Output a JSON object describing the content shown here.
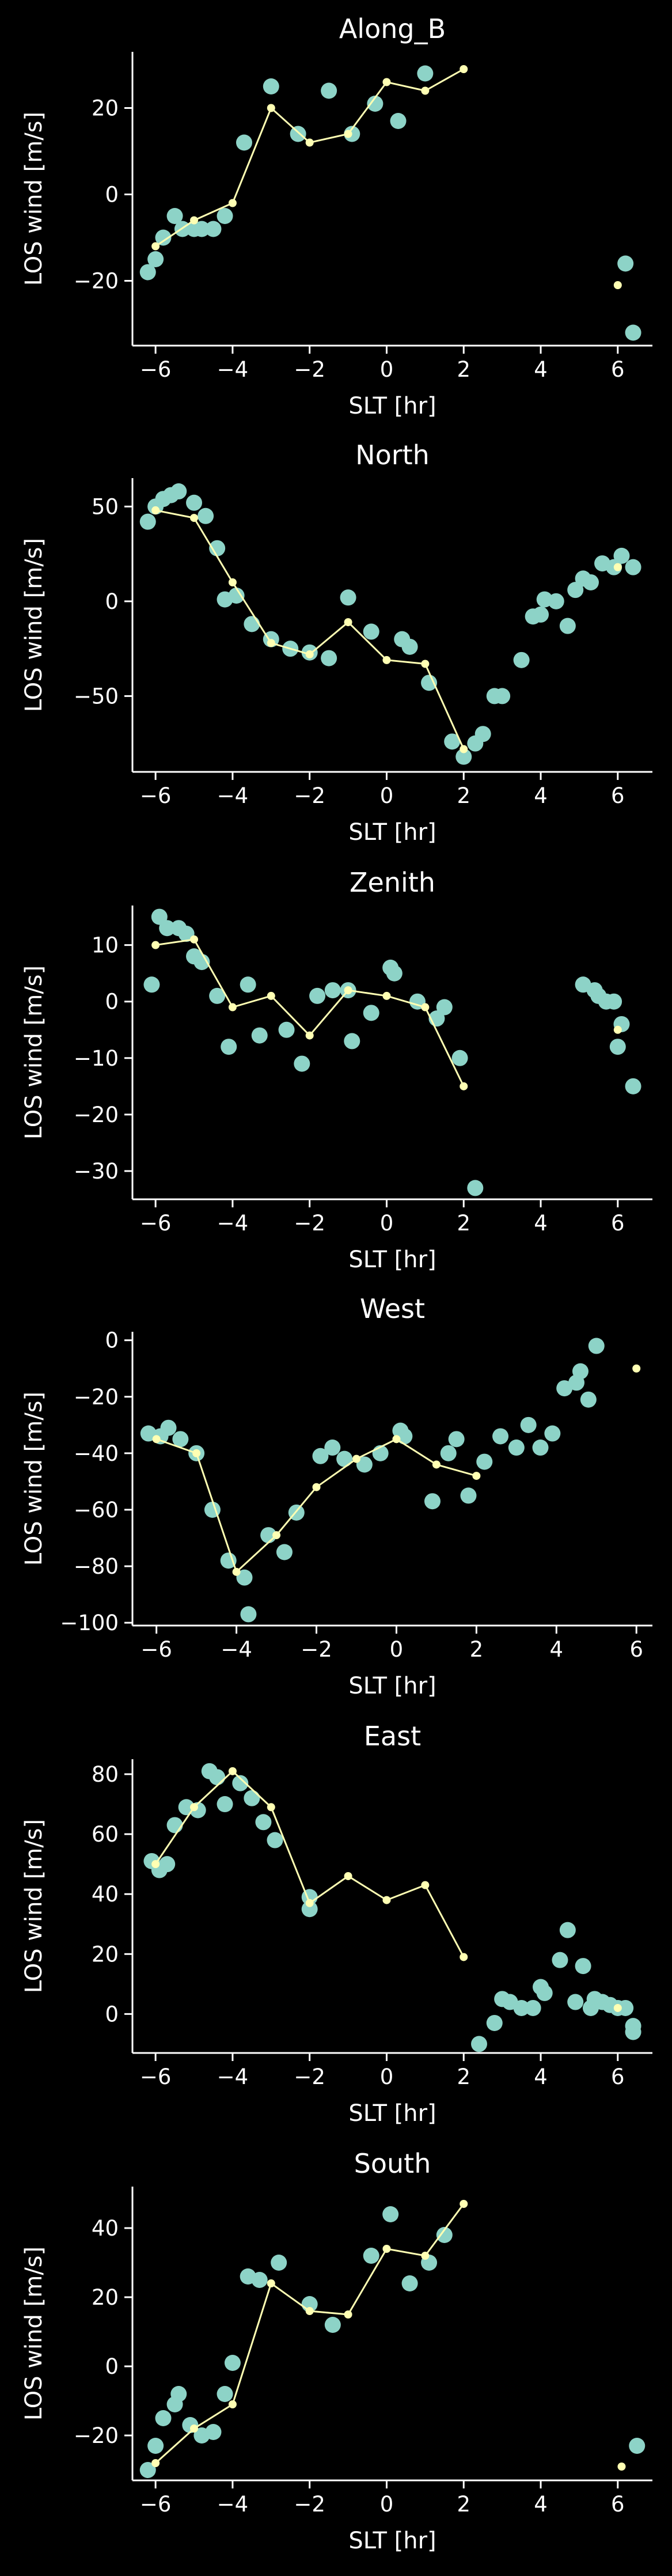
{
  "figure": {
    "background": "#000000",
    "axis_color": "#ffffff",
    "scatter_color": "#8dd3c7",
    "line_color": "#ffffb3"
  },
  "chart_data": [
    {
      "type": "scatter",
      "title": "Along_B",
      "xlabel": "SLT [hr]",
      "ylabel": "LOS wind [m/s]",
      "xlim": [
        -6.6,
        6.9
      ],
      "ylim": [
        -35,
        33
      ],
      "xticks": [
        -6,
        -4,
        -2,
        0,
        2,
        4,
        6
      ],
      "yticks": [
        -20,
        0,
        20
      ],
      "scatter": {
        "x": [
          -6.2,
          -6.0,
          -5.8,
          -5.5,
          -5.3,
          -5.0,
          -4.8,
          -4.5,
          -4.2,
          -3.7,
          -3.0,
          -2.3,
          -1.5,
          -0.9,
          -0.3,
          0.3,
          1.0,
          6.2,
          6.4
        ],
        "y": [
          -18,
          -15,
          -10,
          -5,
          -8,
          -8,
          -8,
          -8,
          -5,
          12,
          25,
          14,
          24,
          14,
          21,
          17,
          28,
          -16,
          -32
        ]
      },
      "line": {
        "x": [
          -6.0,
          -5.0,
          -4.0,
          -3.0,
          -2.0,
          -1.0,
          0.0,
          1.0,
          2.0
        ],
        "y": [
          -12,
          -6,
          -2,
          20,
          12,
          14,
          26,
          24,
          29
        ],
        "extra_point": [
          6.0,
          -21
        ]
      }
    },
    {
      "type": "scatter",
      "title": "North",
      "xlabel": "SLT [hr]",
      "ylabel": "LOS wind [m/s]",
      "xlim": [
        -6.6,
        6.9
      ],
      "ylim": [
        -90,
        65
      ],
      "xticks": [
        -6,
        -4,
        -2,
        0,
        2,
        4,
        6
      ],
      "yticks": [
        -50,
        0,
        50
      ],
      "scatter": {
        "x": [
          -6.2,
          -6.0,
          -5.8,
          -5.6,
          -5.4,
          -5.0,
          -4.7,
          -4.4,
          -4.2,
          -3.9,
          -3.5,
          -3.0,
          -2.5,
          -2.0,
          -1.5,
          -1.0,
          -0.4,
          0.4,
          0.6,
          1.1,
          1.7,
          2.0,
          2.3,
          2.5,
          2.8,
          3.0,
          3.5,
          3.8,
          4.0,
          4.1,
          4.4,
          4.7,
          4.9,
          5.1,
          5.3,
          5.6,
          5.9,
          6.1,
          6.4
        ],
        "y": [
          42,
          50,
          54,
          56,
          58,
          52,
          45,
          28,
          1,
          3,
          -12,
          -20,
          -25,
          -27,
          -30,
          2,
          -16,
          -20,
          -24,
          -43,
          -74,
          -82,
          -75,
          -70,
          -50,
          -50,
          -31,
          -8,
          -7,
          1,
          0,
          -13,
          6,
          12,
          10,
          20,
          18,
          24,
          18
        ]
      },
      "line": {
        "x": [
          -6.0,
          -5.0,
          -4.0,
          -3.0,
          -2.0,
          -1.0,
          0.0,
          1.0,
          2.0
        ],
        "y": [
          48,
          44,
          10,
          -22,
          -28,
          -11,
          -31,
          -33,
          -78
        ],
        "extra_point": [
          6.0,
          18
        ]
      }
    },
    {
      "type": "scatter",
      "title": "Zenith",
      "xlabel": "SLT [hr]",
      "ylabel": "LOS wind [m/s]",
      "xlim": [
        -6.6,
        6.9
      ],
      "ylim": [
        -35,
        17
      ],
      "xticks": [
        -6,
        -4,
        -2,
        0,
        2,
        4,
        6
      ],
      "yticks": [
        -30,
        -20,
        -10,
        0,
        10
      ],
      "scatter": {
        "x": [
          -6.1,
          -5.9,
          -5.7,
          -5.4,
          -5.2,
          -5.0,
          -4.8,
          -4.4,
          -4.1,
          -3.6,
          -3.3,
          -2.6,
          -2.2,
          -1.8,
          -1.4,
          -1.0,
          -0.9,
          -0.4,
          0.1,
          0.2,
          0.8,
          1.3,
          1.5,
          1.9,
          2.3,
          5.1,
          5.4,
          5.5,
          5.7,
          5.9,
          6.0,
          6.1,
          6.4
        ],
        "y": [
          3,
          15,
          13,
          13,
          12,
          8,
          7,
          1,
          -8,
          3,
          -6,
          -5,
          -11,
          1,
          2,
          2,
          -7,
          -2,
          6,
          5,
          0,
          -3,
          -1,
          -10,
          -33,
          3,
          2,
          1,
          0,
          0,
          -8,
          -4,
          -15
        ]
      },
      "line": {
        "x": [
          -6.0,
          -5.0,
          -4.0,
          -3.0,
          -2.0,
          -1.0,
          0.0,
          1.0,
          2.0
        ],
        "y": [
          10,
          11,
          -1,
          1,
          -6,
          2,
          1,
          -1,
          -15
        ],
        "extra_point": [
          6.0,
          -5
        ]
      }
    },
    {
      "type": "scatter",
      "title": "West",
      "xlabel": "SLT [hr]",
      "ylabel": "LOS wind [m/s]",
      "xlim": [
        -6.6,
        6.4
      ],
      "ylim": [
        -101,
        3
      ],
      "xticks": [
        -6,
        -4,
        -2,
        0,
        2,
        4,
        6
      ],
      "yticks": [
        -100,
        -80,
        -60,
        -40,
        -20,
        0
      ],
      "scatter": {
        "x": [
          -6.2,
          -5.9,
          -5.7,
          -5.4,
          -5.0,
          -4.6,
          -4.2,
          -3.8,
          -3.7,
          -3.2,
          -2.8,
          -2.5,
          -1.9,
          -1.6,
          -1.3,
          -0.8,
          -0.4,
          0.1,
          0.2,
          0.9,
          1.3,
          1.5,
          1.8,
          2.2,
          2.6,
          3.0,
          3.3,
          3.6,
          3.9,
          4.2,
          4.5,
          4.6,
          4.8,
          5.0
        ],
        "y": [
          -33,
          -34,
          -31,
          -35,
          -40,
          -60,
          -78,
          -84,
          -97,
          -69,
          -75,
          -61,
          -41,
          -38,
          -42,
          -44,
          -40,
          -32,
          -34,
          -57,
          -40,
          -35,
          -55,
          -43,
          -34,
          -38,
          -30,
          -38,
          -33,
          -17,
          -15,
          -11,
          -21,
          -2
        ]
      },
      "line": {
        "x": [
          -6.0,
          -5.0,
          -4.0,
          -3.0,
          -2.0,
          -1.0,
          0.0,
          1.0,
          2.0
        ],
        "y": [
          -35,
          -40,
          -82,
          -69,
          -52,
          -42,
          -35,
          -44,
          -48
        ],
        "extra_point": [
          6.0,
          -10
        ]
      }
    },
    {
      "type": "scatter",
      "title": "East",
      "xlabel": "SLT [hr]",
      "ylabel": "LOS wind [m/s]",
      "xlim": [
        -6.6,
        6.9
      ],
      "ylim": [
        -13,
        85
      ],
      "xticks": [
        -6,
        -4,
        -2,
        0,
        2,
        4,
        6
      ],
      "yticks": [
        0,
        20,
        40,
        60,
        80
      ],
      "scatter": {
        "x": [
          -6.1,
          -5.9,
          -5.7,
          -5.5,
          -5.2,
          -4.9,
          -4.6,
          -4.4,
          -4.2,
          -3.8,
          -3.5,
          -3.2,
          -2.9,
          -2.0,
          -2.0,
          2.4,
          2.8,
          3.0,
          3.2,
          3.5,
          3.8,
          4.0,
          4.1,
          4.5,
          4.7,
          4.9,
          5.1,
          5.3,
          5.4,
          5.6,
          5.8,
          6.0,
          6.2,
          6.4,
          6.4
        ],
        "y": [
          51,
          48,
          50,
          63,
          69,
          68,
          81,
          79,
          70,
          77,
          72,
          64,
          58,
          39,
          35,
          -10,
          -3,
          5,
          4,
          2,
          2,
          9,
          7,
          18,
          28,
          4,
          16,
          2,
          5,
          4,
          3,
          2,
          2,
          -4,
          -6
        ]
      },
      "line": {
        "x": [
          -6.0,
          -5.0,
          -4.0,
          -3.0,
          -2.0,
          -1.0,
          0.0,
          1.0,
          2.0
        ],
        "y": [
          50,
          69,
          81,
          69,
          37,
          46,
          38,
          43,
          19
        ],
        "extra_point": [
          6.0,
          2
        ]
      }
    },
    {
      "type": "scatter",
      "title": "South",
      "xlabel": "SLT [hr]",
      "ylabel": "LOS wind [m/s]",
      "xlim": [
        -6.6,
        6.9
      ],
      "ylim": [
        -33,
        52
      ],
      "xticks": [
        -6,
        -4,
        -2,
        0,
        2,
        4,
        6
      ],
      "yticks": [
        -20,
        0,
        20,
        40
      ],
      "scatter": {
        "x": [
          -6.2,
          -6.0,
          -5.8,
          -5.5,
          -5.4,
          -5.1,
          -4.8,
          -4.5,
          -4.2,
          -4.0,
          -3.6,
          -3.3,
          -2.8,
          -2.0,
          -1.4,
          -0.4,
          0.1,
          0.6,
          1.1,
          1.5,
          6.5
        ],
        "y": [
          -30,
          -23,
          -15,
          -11,
          -8,
          -17,
          -20,
          -19,
          -8,
          1,
          26,
          25,
          30,
          18,
          12,
          32,
          44,
          24,
          30,
          38,
          -23
        ]
      },
      "line": {
        "x": [
          -6.0,
          -5.0,
          -4.0,
          -3.0,
          -2.0,
          -1.0,
          0.0,
          1.0,
          2.0
        ],
        "y": [
          -28,
          -18,
          -11,
          24,
          16,
          15,
          34,
          32,
          47
        ],
        "extra_point": [
          6.1,
          -29
        ]
      }
    }
  ]
}
